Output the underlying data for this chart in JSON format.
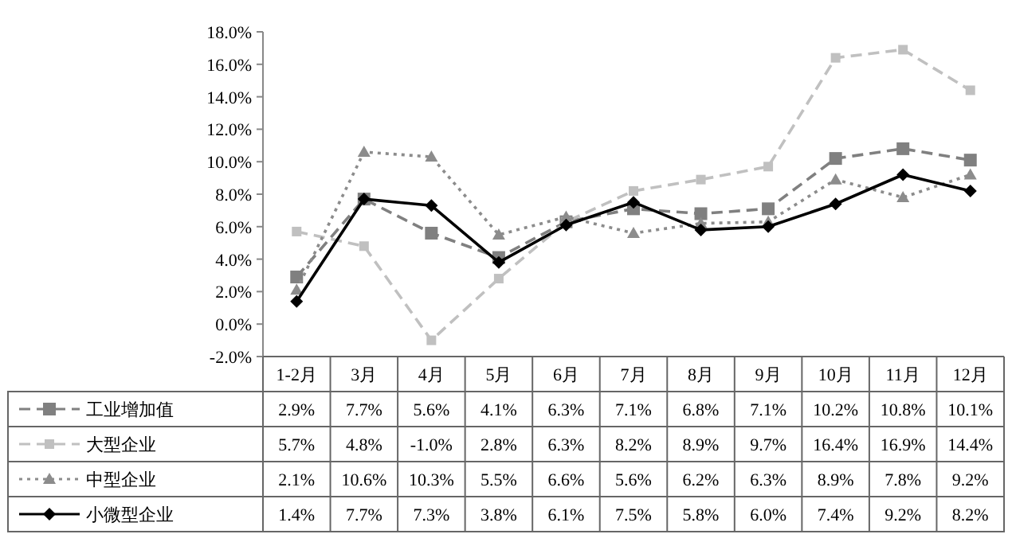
{
  "chart_data": {
    "type": "line",
    "categories": [
      "1-2月",
      "3月",
      "4月",
      "5月",
      "6月",
      "7月",
      "8月",
      "9月",
      "10月",
      "11月",
      "12月"
    ],
    "series": [
      {
        "name": "工业增加值",
        "color": "#808080",
        "marker": "square",
        "line_style": "dashed",
        "values": [
          2.9,
          7.7,
          5.6,
          4.1,
          6.3,
          7.1,
          6.8,
          7.1,
          10.2,
          10.8,
          10.1
        ],
        "value_labels": [
          "2.9%",
          "7.7%",
          "5.6%",
          "4.1%",
          "6.3%",
          "7.1%",
          "6.8%",
          "7.1%",
          "10.2%",
          "10.8%",
          "10.1%"
        ]
      },
      {
        "name": "大型企业",
        "color": "#c0c0c0",
        "marker": "square",
        "line_style": "dashed",
        "values": [
          5.7,
          4.8,
          -1.0,
          2.8,
          6.3,
          8.2,
          8.9,
          9.7,
          16.4,
          16.9,
          14.4
        ],
        "value_labels": [
          "5.7%",
          "4.8%",
          "-1.0%",
          "2.8%",
          "6.3%",
          "8.2%",
          "8.9%",
          "9.7%",
          "16.4%",
          "16.9%",
          "14.4%"
        ]
      },
      {
        "name": "中型企业",
        "color": "#8c8c8c",
        "marker": "triangle",
        "line_style": "dotted",
        "values": [
          2.1,
          10.6,
          10.3,
          5.5,
          6.6,
          5.6,
          6.2,
          6.3,
          8.9,
          7.8,
          9.2
        ],
        "value_labels": [
          "2.1%",
          "10.6%",
          "10.3%",
          "5.5%",
          "6.6%",
          "5.6%",
          "6.2%",
          "6.3%",
          "8.9%",
          "7.8%",
          "9.2%"
        ]
      },
      {
        "name": "小微型企业",
        "color": "#000000",
        "marker": "diamond",
        "line_style": "solid",
        "values": [
          1.4,
          7.7,
          7.3,
          3.8,
          6.1,
          7.5,
          5.8,
          6.0,
          7.4,
          9.2,
          8.2
        ],
        "value_labels": [
          "1.4%",
          "7.7%",
          "7.3%",
          "3.8%",
          "6.1%",
          "7.5%",
          "5.8%",
          "6.0%",
          "7.4%",
          "9.2%",
          "8.2%"
        ]
      }
    ],
    "ylim": [
      -2,
      18
    ],
    "yticks": [
      {
        "value": -2,
        "label": "-2.0%"
      },
      {
        "value": 0,
        "label": "0.0%"
      },
      {
        "value": 2,
        "label": "2.0%"
      },
      {
        "value": 4,
        "label": "4.0%"
      },
      {
        "value": 6,
        "label": "6.0%"
      },
      {
        "value": 8,
        "label": "8.0%"
      },
      {
        "value": 10,
        "label": "10.0%"
      },
      {
        "value": 12,
        "label": "12.0%"
      },
      {
        "value": 14,
        "label": "14.0%"
      },
      {
        "value": 16,
        "label": "16.0%"
      },
      {
        "value": 18,
        "label": "18.0%"
      }
    ],
    "legend": "bottom",
    "grid": false
  }
}
